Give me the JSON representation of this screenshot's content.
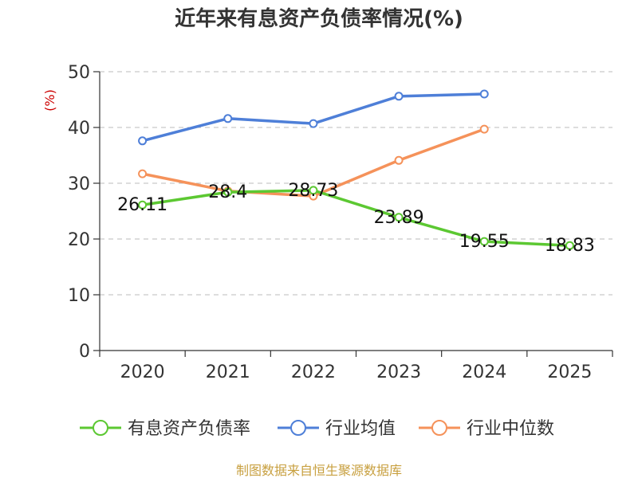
{
  "chart_data": {
    "type": "line",
    "title": "近年来有息资产负债率情况(%)",
    "unit_label": "(%)",
    "categories": [
      "2020",
      "2021",
      "2022",
      "2023",
      "2024",
      "2025"
    ],
    "y_ticks": [
      "0",
      "10",
      "20",
      "30",
      "40",
      "50"
    ],
    "ylim": [
      0,
      50
    ],
    "grid": true,
    "legend_position": "bottom",
    "series": [
      {
        "name": "有息资产负债率",
        "color": "#5cc832",
        "values": [
          26.11,
          28.4,
          28.73,
          23.89,
          19.55,
          18.83
        ],
        "data_labels": [
          "26.11",
          "28.4",
          "28.73",
          "23.89",
          "19.55",
          "18.83"
        ]
      },
      {
        "name": "行业均值",
        "color": "#4e7fd8",
        "values": [
          37.6,
          41.6,
          40.7,
          45.6,
          46.0,
          null
        ]
      },
      {
        "name": "行业中位数",
        "color": "#f5925a",
        "values": [
          31.7,
          28.6,
          27.7,
          34.1,
          39.7,
          null
        ]
      }
    ],
    "source": "制图数据来自恒生聚源数据库"
  }
}
